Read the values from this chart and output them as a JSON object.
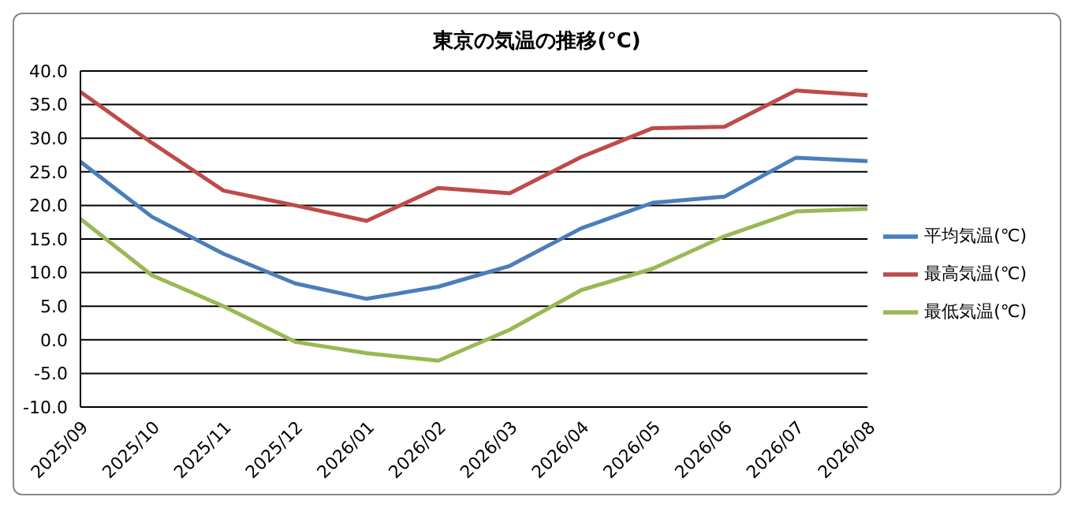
{
  "chart_data": {
    "type": "line",
    "title": "東京の気温の推移(℃)",
    "categories": [
      "2025/09",
      "2025/10",
      "2025/11",
      "2025/12",
      "2026/01",
      "2026/02",
      "2026/03",
      "2026/04",
      "2026/05",
      "2026/06",
      "2026/07",
      "2026/08"
    ],
    "series": [
      {
        "name": "平均気温(℃)",
        "color": "#4a7ebb",
        "values": [
          26.5,
          18.3,
          12.8,
          8.4,
          6.1,
          7.9,
          11.0,
          16.6,
          20.4,
          21.3,
          27.1,
          26.6
        ]
      },
      {
        "name": "最高気温(℃)",
        "color": "#be4b48",
        "values": [
          36.9,
          29.3,
          22.2,
          20.0,
          17.7,
          22.6,
          21.8,
          27.2,
          31.5,
          31.7,
          37.1,
          36.4
        ]
      },
      {
        "name": "最低気温(℃)",
        "color": "#98b954",
        "values": [
          18.0,
          9.6,
          5.0,
          -0.3,
          -2.0,
          -3.1,
          1.5,
          7.4,
          10.6,
          15.4,
          19.1,
          19.5
        ]
      }
    ],
    "ylim": [
      -10,
      40
    ],
    "yticks": [
      {
        "value": -10,
        "label": "-10.0"
      },
      {
        "value": -5,
        "label": "-5.0"
      },
      {
        "value": 0,
        "label": "0.0"
      },
      {
        "value": 5,
        "label": "5.0"
      },
      {
        "value": 10,
        "label": "10.0"
      },
      {
        "value": 15,
        "label": "15.0"
      },
      {
        "value": 20,
        "label": "20.0"
      },
      {
        "value": 25,
        "label": "25.0"
      },
      {
        "value": 30,
        "label": "30.0"
      },
      {
        "value": 35,
        "label": "35.0"
      },
      {
        "value": 40,
        "label": "40.0"
      }
    ],
    "grid": "y",
    "legend": "right",
    "marker": "none",
    "line_style": "solid"
  }
}
